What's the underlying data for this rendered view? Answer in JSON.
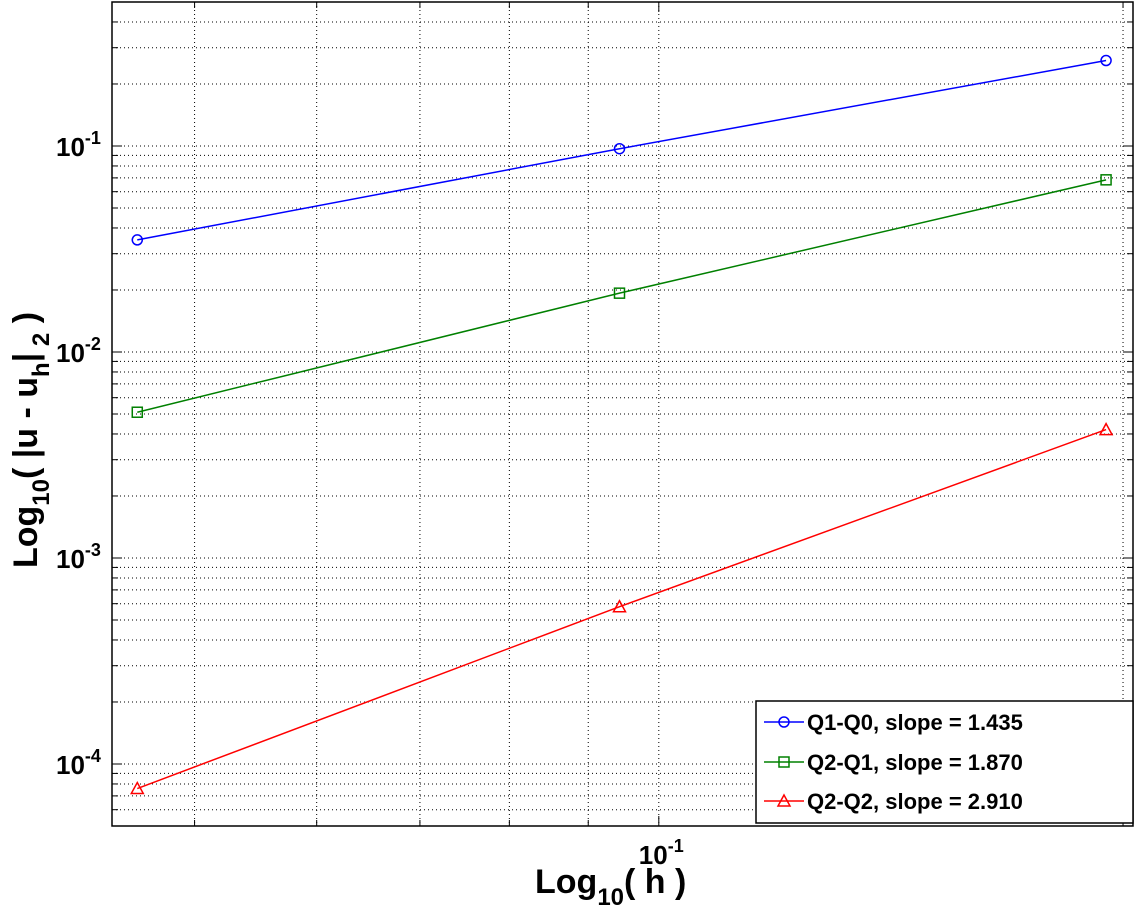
{
  "chart_data": {
    "type": "line",
    "scale": {
      "x": "log",
      "y": "log"
    },
    "xlim": [
      0.0442,
      0.203
    ],
    "ylim": [
      5e-05,
      0.5
    ],
    "grid": true,
    "legend_position": "bottom-right",
    "xlabel": {
      "main": "Log",
      "sub": "10",
      "rest": "( h )"
    },
    "ylabel": {
      "main": "Log",
      "sub": "10",
      "mid": "( |u - u",
      "sub2": "h",
      "mid2": "|",
      "sub3": " 2",
      "rest": " )"
    },
    "x_ticks": [
      {
        "value": 0.1,
        "base": "10",
        "exp": "-1"
      }
    ],
    "y_ticks": [
      {
        "value": 0.0001,
        "base": "10",
        "exp": "-4"
      },
      {
        "value": 0.001,
        "base": "10",
        "exp": "-3"
      },
      {
        "value": 0.01,
        "base": "10",
        "exp": "-2"
      },
      {
        "value": 0.1,
        "base": "10",
        "exp": "-1"
      }
    ],
    "series": [
      {
        "name": "Q1-Q0, slope = 1.435",
        "color": "#0000ff",
        "marker": "circle",
        "x": [
          0.0459,
          0.0943,
          0.195
        ],
        "y": [
          0.035,
          0.097,
          0.26
        ]
      },
      {
        "name": "Q2-Q1, slope = 1.870",
        "color": "#008000",
        "marker": "square",
        "x": [
          0.0459,
          0.0943,
          0.195
        ],
        "y": [
          0.0051,
          0.0193,
          0.0685
        ]
      },
      {
        "name": "Q2-Q2, slope = 2.910",
        "color": "#ff0000",
        "marker": "triangle",
        "x": [
          0.0459,
          0.0943,
          0.195
        ],
        "y": [
          7.6e-05,
          0.00058,
          0.0042
        ]
      }
    ]
  }
}
